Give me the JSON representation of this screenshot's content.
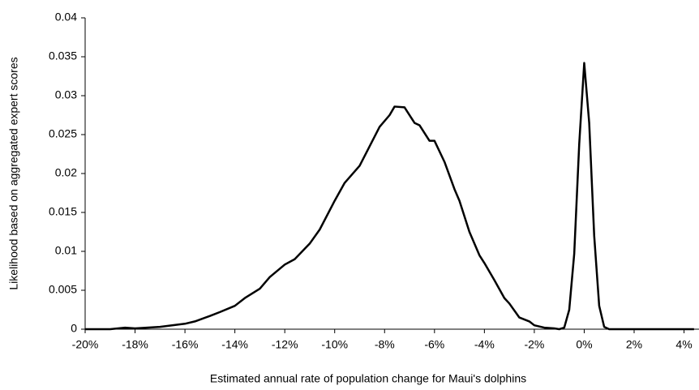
{
  "chart_data": {
    "type": "line",
    "x_label": "Estimated annual rate of population change for Maui's dolphins",
    "y_label": "Likelihood based on aggregated expert scores",
    "x": [
      -20,
      -19,
      -18.4,
      -18,
      -17,
      -16,
      -15.6,
      -15,
      -14.6,
      -14,
      -13.6,
      -13,
      -12.6,
      -12,
      -11.6,
      -11,
      -10.6,
      -10,
      -9.6,
      -9,
      -8.6,
      -8.2,
      -7.8,
      -7.6,
      -7.2,
      -6.8,
      -6.6,
      -6.2,
      -6,
      -5.6,
      -5.2,
      -5,
      -4.6,
      -4.2,
      -4,
      -3.6,
      -3.2,
      -3,
      -2.6,
      -2.2,
      -2,
      -1.6,
      -1.2,
      -1,
      -0.8,
      -0.6,
      -0.4,
      -0.2,
      0,
      0.2,
      0.4,
      0.6,
      0.8,
      1,
      2,
      3,
      4,
      4.4
    ],
    "series": [
      {
        "color": "#000000",
        "values": [
          0,
          0,
          0.0002,
          0.0001,
          0.0003,
          0.0007,
          0.001,
          0.0017,
          0.0022,
          0.003,
          0.004,
          0.0052,
          0.0067,
          0.0083,
          0.009,
          0.011,
          0.0128,
          0.0165,
          0.0188,
          0.021,
          0.0235,
          0.026,
          0.0275,
          0.0286,
          0.0285,
          0.0265,
          0.0262,
          0.0242,
          0.0242,
          0.0215,
          0.018,
          0.0165,
          0.0125,
          0.0095,
          0.0085,
          0.0063,
          0.004,
          0.0033,
          0.0015,
          0.001,
          0.0005,
          0.0002,
          0.0001,
          0,
          0.0002,
          0.0025,
          0.0097,
          0.0238,
          0.0342,
          0.0265,
          0.012,
          0.003,
          0.0003,
          0,
          0,
          0,
          0,
          0
        ]
      }
    ],
    "xlim": [
      -20,
      4.6
    ],
    "ylim": [
      0,
      0.04
    ],
    "xticks": [
      {
        "value": -20,
        "label": "-20%"
      },
      {
        "value": -18,
        "label": "-18%"
      },
      {
        "value": -16,
        "label": "-16%"
      },
      {
        "value": -14,
        "label": "-14%"
      },
      {
        "value": -12,
        "label": "-12%"
      },
      {
        "value": -10,
        "label": "-10%"
      },
      {
        "value": -8,
        "label": "-8%"
      },
      {
        "value": -6,
        "label": "-6%"
      },
      {
        "value": -4,
        "label": "-4%"
      },
      {
        "value": -2,
        "label": "-2%"
      },
      {
        "value": 0,
        "label": "0%"
      },
      {
        "value": 2,
        "label": "2%"
      },
      {
        "value": 4,
        "label": "4%"
      }
    ],
    "yticks": [
      0,
      0.005,
      0.01,
      0.015,
      0.02,
      0.025,
      0.03,
      0.035,
      0.04
    ]
  }
}
